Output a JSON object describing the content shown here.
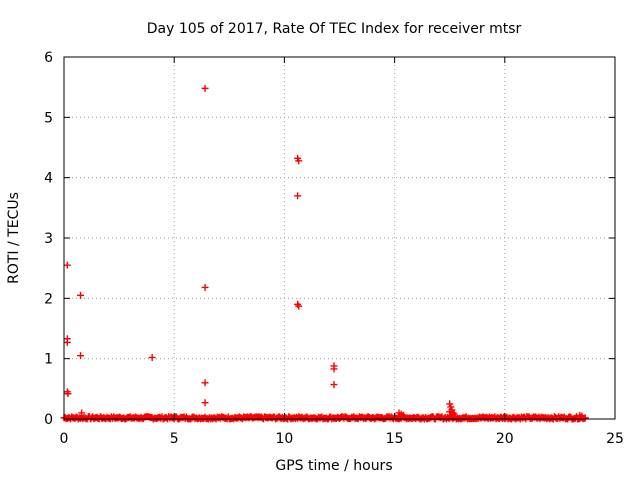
{
  "chart_data": {
    "type": "scatter",
    "title": "Day 105 of 2017, Rate Of TEC Index for receiver mtsr",
    "xlabel": "GPS time / hours",
    "ylabel": "ROTI / TECUs",
    "xlim": [
      0,
      25
    ],
    "ylim": [
      0,
      6
    ],
    "xticks": [
      0,
      5,
      10,
      15,
      20,
      25
    ],
    "yticks": [
      0,
      1,
      2,
      3,
      4,
      5,
      6
    ],
    "grid": true,
    "marker": "+",
    "color": "#ff0000",
    "series": [
      {
        "name": "ROTI",
        "points": [
          [
            0.15,
            2.55
          ],
          [
            0.15,
            1.33
          ],
          [
            0.15,
            1.27
          ],
          [
            0.15,
            0.45
          ],
          [
            0.18,
            0.42
          ],
          [
            0.75,
            2.05
          ],
          [
            0.75,
            1.05
          ],
          [
            0.8,
            0.1
          ],
          [
            4.0,
            1.02
          ],
          [
            6.4,
            5.48
          ],
          [
            6.4,
            2.18
          ],
          [
            6.4,
            0.6
          ],
          [
            6.4,
            0.27
          ],
          [
            10.6,
            4.32
          ],
          [
            10.65,
            4.28
          ],
          [
            10.6,
            3.7
          ],
          [
            10.6,
            1.9
          ],
          [
            10.65,
            1.87
          ],
          [
            12.25,
            0.88
          ],
          [
            12.25,
            0.83
          ],
          [
            12.25,
            0.57
          ],
          [
            15.2,
            0.1
          ],
          [
            15.3,
            0.08
          ],
          [
            15.4,
            0.06
          ],
          [
            17.5,
            0.25
          ],
          [
            17.55,
            0.2
          ],
          [
            17.6,
            0.15
          ],
          [
            17.5,
            0.12
          ],
          [
            17.65,
            0.1
          ],
          [
            17.7,
            0.08
          ],
          [
            23.4,
            0.06
          ],
          [
            23.5,
            0.05
          ]
        ],
        "baseline": {
          "x_start": 0.0,
          "x_end": 23.7,
          "x_step": 0.05,
          "y_min": 0.0,
          "y_max": 0.04
        }
      }
    ]
  }
}
